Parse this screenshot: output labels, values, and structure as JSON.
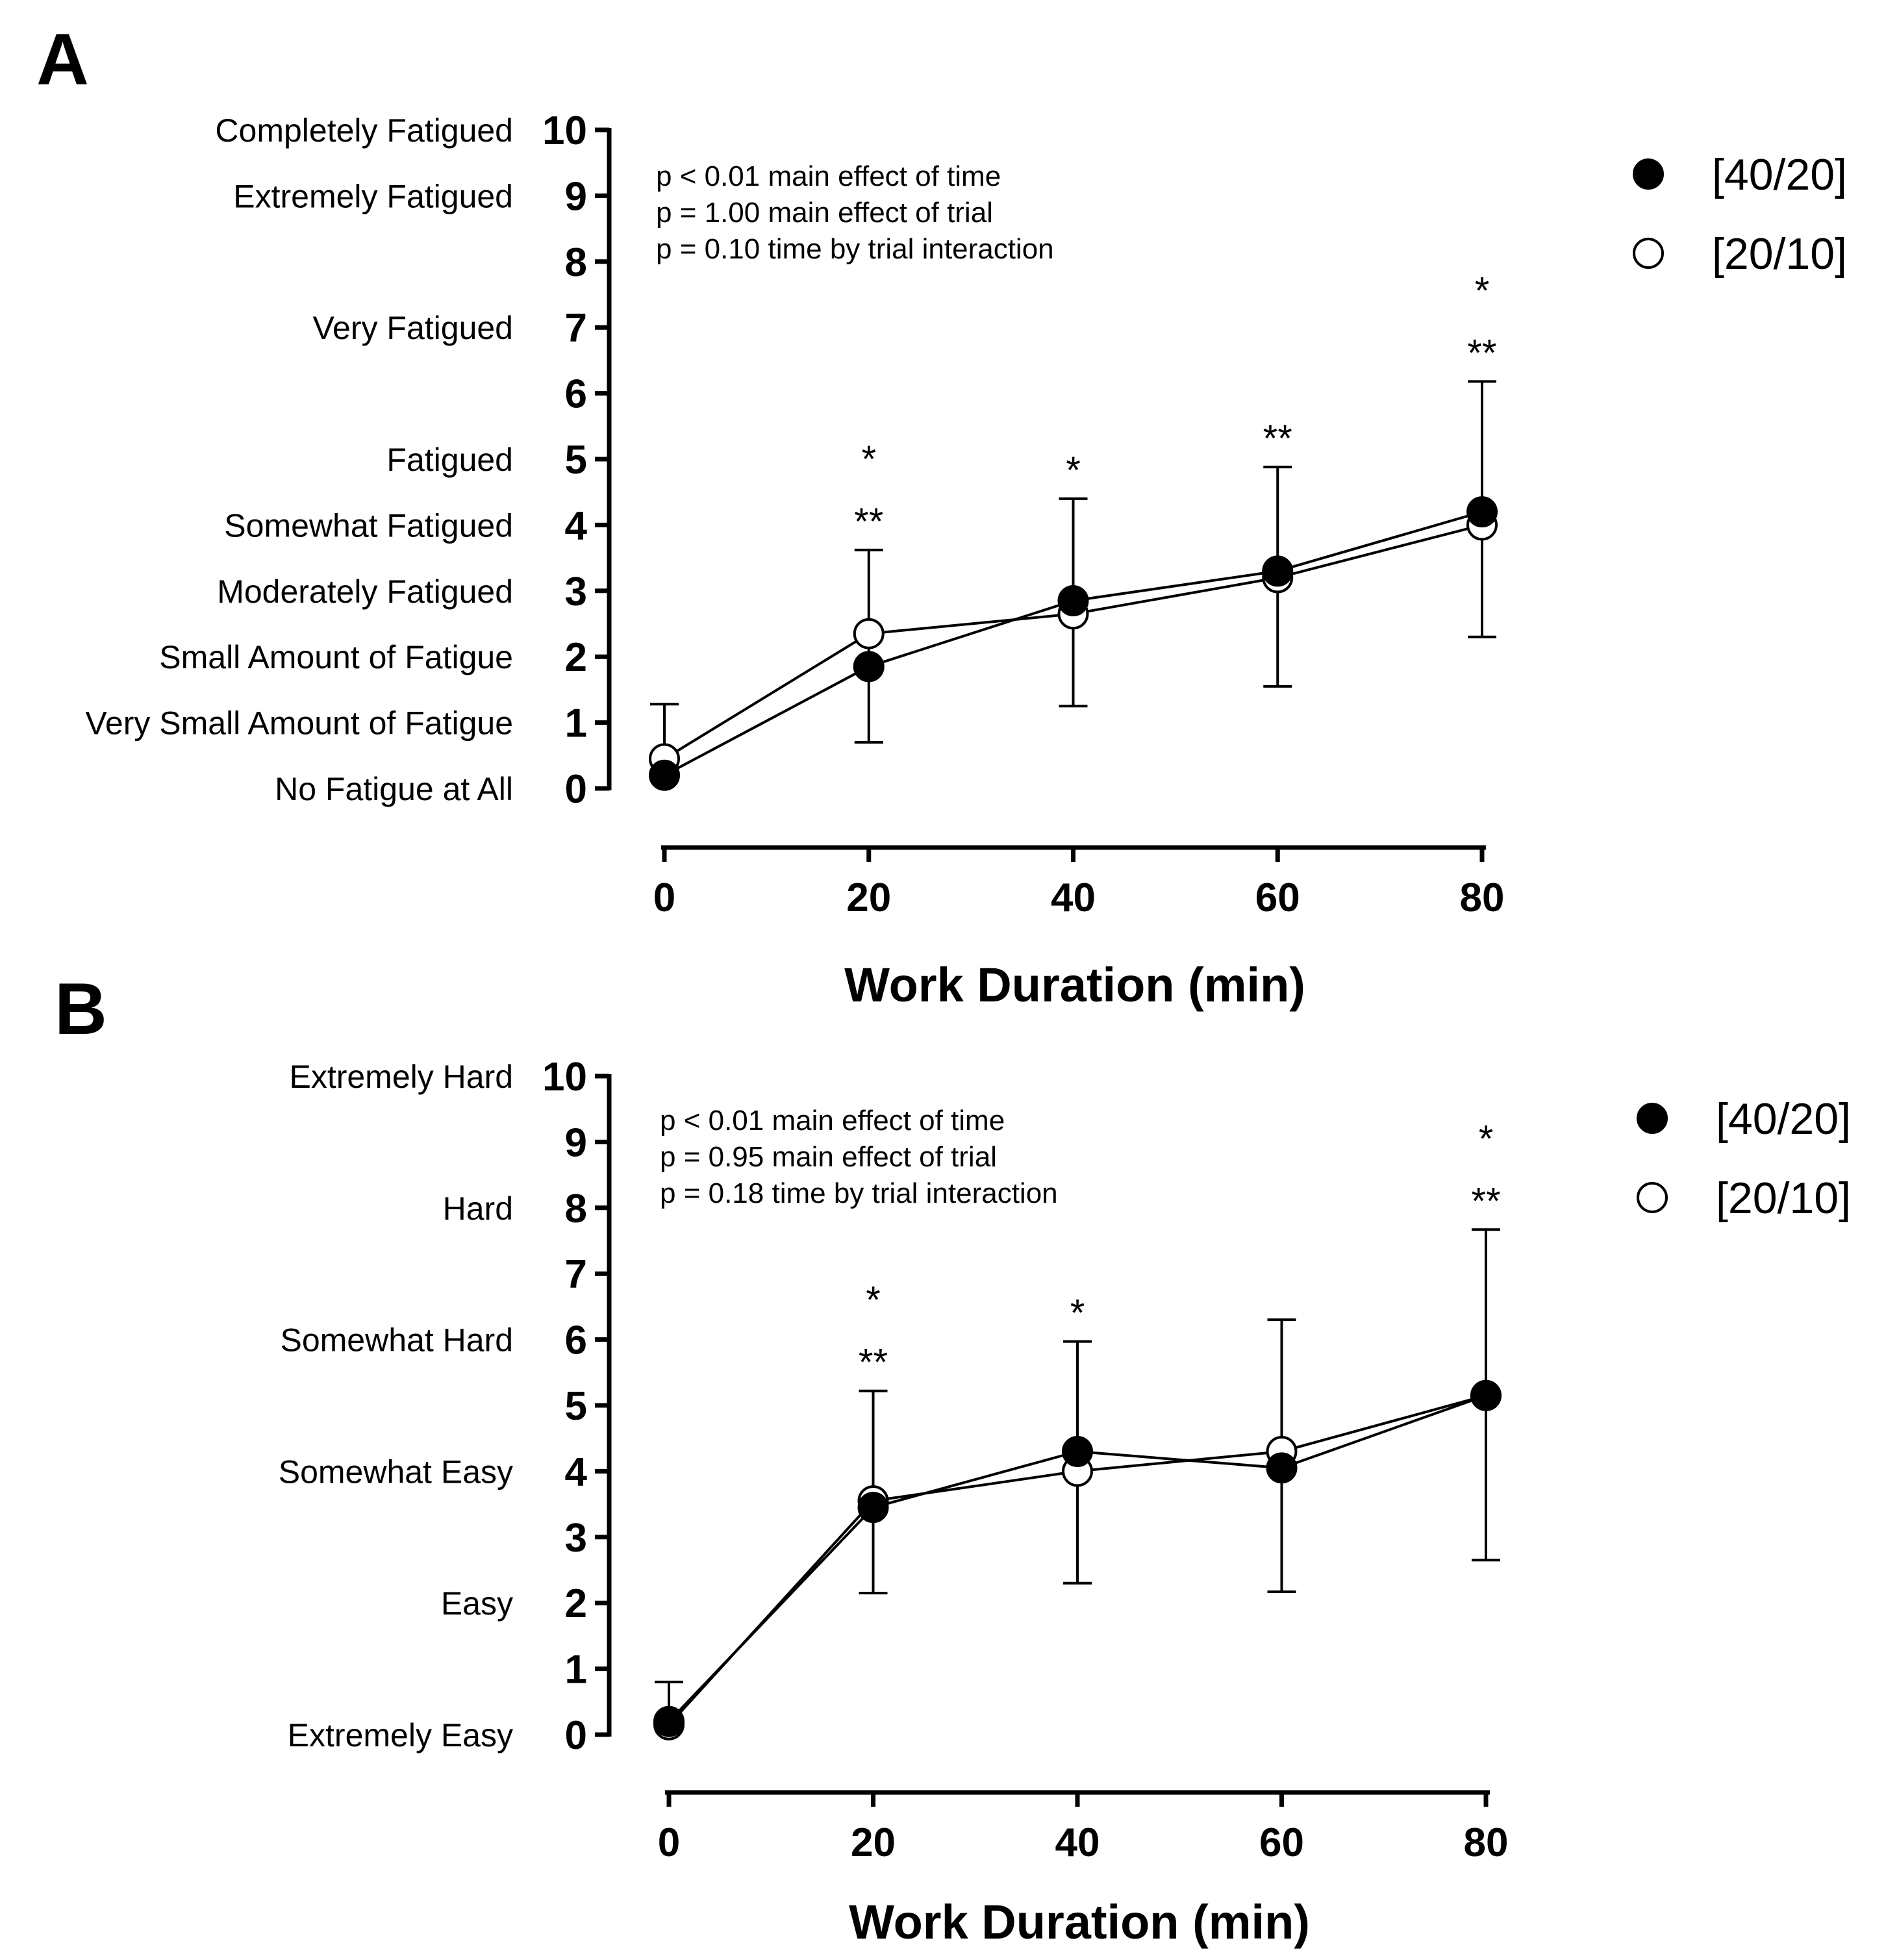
{
  "chart_data": [
    {
      "panel": "A",
      "type": "line",
      "xlabel": "Work Duration (min)",
      "ylabel": "",
      "categories": [
        0,
        20,
        40,
        60,
        80
      ],
      "xlim": [
        0,
        80
      ],
      "ylim": [
        0,
        10
      ],
      "y_ticks": [
        0,
        1,
        2,
        3,
        4,
        5,
        6,
        7,
        8,
        9,
        10
      ],
      "y_category_labels": [
        {
          "value": 10,
          "label": "Completely Fatigued"
        },
        {
          "value": 9,
          "label": "Extremely Fatigued"
        },
        {
          "value": 7,
          "label": "Very Fatigued"
        },
        {
          "value": 5,
          "label": "Fatigued"
        },
        {
          "value": 4,
          "label": "Somewhat Fatigued"
        },
        {
          "value": 3,
          "label": "Moderately Fatigued"
        },
        {
          "value": 2,
          "label": "Small Amount of Fatigue"
        },
        {
          "value": 1,
          "label": "Very Small Amount of Fatigue"
        },
        {
          "value": 0,
          "label": "No Fatigue at All"
        }
      ],
      "stats": [
        "p < 0.01 main effect of time",
        "p = 1.00 main effect of trial",
        "p = 0.10 time by trial interaction"
      ],
      "series": [
        {
          "name": "[40/20]",
          "marker": "filled",
          "values": [
            0.2,
            1.85,
            2.85,
            3.3,
            4.2
          ]
        },
        {
          "name": "[20/10]",
          "marker": "open",
          "values": [
            0.45,
            2.35,
            2.65,
            3.2,
            4.0
          ]
        }
      ],
      "error_bars": [
        {
          "x": 0,
          "upper": 1.28
        },
        {
          "x": 20,
          "upper": 3.62,
          "lower": 0.7
        },
        {
          "x": 40,
          "upper": 4.4,
          "lower": 1.25
        },
        {
          "x": 60,
          "upper": 4.88,
          "lower": 1.55
        },
        {
          "x": 80,
          "upper": 6.18,
          "lower": 2.3
        }
      ],
      "significance": [
        {
          "x": 20,
          "upper": "*",
          "lower": "**"
        },
        {
          "x": 40,
          "upper": "*"
        },
        {
          "x": 60,
          "upper": "**"
        },
        {
          "x": 80,
          "upper": "*",
          "lower": "**"
        }
      ]
    },
    {
      "panel": "B",
      "type": "line",
      "xlabel": "Work Duration (min)",
      "ylabel": "",
      "categories": [
        0,
        20,
        40,
        60,
        80
      ],
      "xlim": [
        0,
        80
      ],
      "ylim": [
        0,
        10
      ],
      "y_ticks": [
        0,
        1,
        2,
        3,
        4,
        5,
        6,
        7,
        8,
        9,
        10
      ],
      "y_category_labels": [
        {
          "value": 10,
          "label": "Extremely Hard"
        },
        {
          "value": 8,
          "label": "Hard"
        },
        {
          "value": 6,
          "label": "Somewhat Hard"
        },
        {
          "value": 4,
          "label": "Somewhat Easy"
        },
        {
          "value": 2,
          "label": "Easy"
        },
        {
          "value": 0,
          "label": "Extremely Easy"
        }
      ],
      "stats": [
        "p < 0.01 main effect of time",
        "p = 0.95 main effect of trial",
        "p = 0.18 time by trial interaction"
      ],
      "series": [
        {
          "name": "[40/20]",
          "marker": "filled",
          "values": [
            0.2,
            3.45,
            4.3,
            4.05,
            5.15
          ]
        },
        {
          "name": "[20/10]",
          "marker": "open",
          "values": [
            0.15,
            3.55,
            4.0,
            4.3,
            5.15
          ]
        }
      ],
      "error_bars": [
        {
          "x": 0,
          "upper": 0.8
        },
        {
          "x": 20,
          "upper": 5.22,
          "lower": 2.15
        },
        {
          "x": 40,
          "upper": 5.97,
          "lower": 2.3
        },
        {
          "x": 60,
          "upper": 6.3,
          "lower": 2.17
        },
        {
          "x": 80,
          "upper": 7.67,
          "lower": 2.65
        }
      ],
      "significance": [
        {
          "x": 20,
          "upper": "*",
          "lower": "**"
        },
        {
          "x": 40,
          "upper": "*"
        },
        {
          "x": 80,
          "upper": "*",
          "lower": "**"
        }
      ]
    }
  ]
}
